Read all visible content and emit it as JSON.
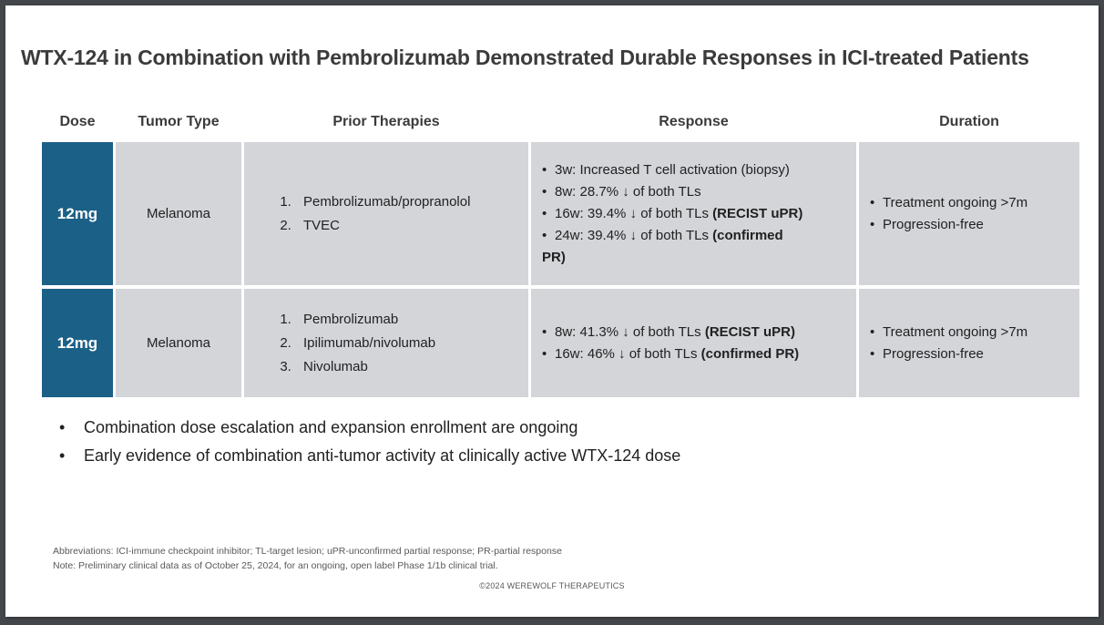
{
  "slide": {
    "title": "WTX-124 in Combination with Pembrolizumab Demonstrated Durable Responses in ICI-treated Patients",
    "table": {
      "headers": {
        "dose": "Dose",
        "tumor_type": "Tumor Type",
        "prior_therapies": "Prior Therapies",
        "response": "Response",
        "duration": "Duration"
      },
      "rows": [
        {
          "dose": "12mg",
          "tumor_type": "Melanoma",
          "prior_therapies": [
            "Pembrolizumab/propranolol",
            "TVEC"
          ],
          "response": [
            {
              "pre": "3w: Increased T cell activation (biopsy)"
            },
            {
              "pre": "8w: 28.7% ↓ of both TLs"
            },
            {
              "pre": "16w: 39.4% ↓ of both TLs ",
              "bold": "(RECIST uPR)"
            },
            {
              "pre": "24w: 39.4% ↓ of both TLs ",
              "bold": "(confirmed",
              "bold_line2": "PR)"
            }
          ],
          "duration": [
            "Treatment ongoing >7m",
            "Progression-free"
          ]
        },
        {
          "dose": "12mg",
          "tumor_type": "Melanoma",
          "prior_therapies": [
            "Pembrolizumab",
            "Ipilimumab/nivolumab",
            "Nivolumab"
          ],
          "response": [
            {
              "pre": "8w: 41.3% ↓ of both TLs ",
              "bold": "(RECIST uPR)"
            },
            {
              "pre": "16w: 46% ↓ of both TLs ",
              "bold": "(confirmed PR)"
            }
          ],
          "duration": [
            "Treatment ongoing >7m",
            "Progression-free"
          ]
        }
      ]
    },
    "key_points": [
      "Combination dose escalation and expansion enrollment are ongoing",
      "Early evidence of combination anti-tumor activity at clinically active WTX-124 dose"
    ],
    "footnotes": {
      "abbreviations": "Abbreviations: ICI-immune checkpoint inhibitor; TL-target lesion; uPR-unconfirmed partial response; PR-partial response",
      "note": "Note: Preliminary clinical data as of October 25, 2024, for an ongoing, open label Phase 1/1b clinical trial."
    },
    "copyright": "©2024 WEREWOLF THERAPEUTICS"
  },
  "colors": {
    "dose_cell_teal": "#1B6087",
    "table_cell_gray": "#D3D5D9",
    "frame_gray": "#43464A",
    "title_text": "#3B3B3B",
    "body_text": "#212121",
    "footnote_text": "#595959"
  }
}
